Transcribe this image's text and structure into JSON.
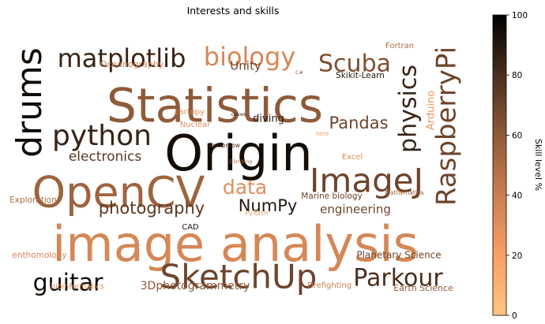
{
  "chart_data": {
    "type": "wordcloud",
    "title": "Interests and skills",
    "colorbar": {
      "label": "Skill level %",
      "min": 0,
      "max": 100,
      "ticks": [
        0,
        20,
        40,
        60,
        80,
        100
      ],
      "colormap": "copper_r",
      "stops": [
        "#ffc77f",
        "#f89f65",
        "#c97f51",
        "#8f5a39",
        "#4a2e1d",
        "#000000"
      ]
    },
    "words": [
      {
        "text": "image analysis",
        "skill": 35
      },
      {
        "text": "Statistics",
        "skill": 60
      },
      {
        "text": "Origin",
        "skill": 95
      },
      {
        "text": "OpenCV",
        "skill": 55
      },
      {
        "text": "ImageJ",
        "skill": 70
      },
      {
        "text": "SketchUp",
        "skill": 70
      },
      {
        "text": "drums",
        "skill": 95
      },
      {
        "text": "python",
        "skill": 85
      },
      {
        "text": "RaspberryPi",
        "skill": 70
      },
      {
        "text": "matplotlib",
        "skill": 85
      },
      {
        "text": "biology",
        "skill": 35
      },
      {
        "text": "Scuba",
        "skill": 65
      },
      {
        "text": "physics",
        "skill": 85
      },
      {
        "text": "Parkour",
        "skill": 80
      },
      {
        "text": "guitar",
        "skill": 95
      },
      {
        "text": "photography",
        "skill": 75
      },
      {
        "text": "Pandas",
        "skill": 70
      },
      {
        "text": "data",
        "skill": 30
      },
      {
        "text": "NumPy",
        "skill": 90
      },
      {
        "text": "electronics",
        "skill": 75
      },
      {
        "text": "engineering",
        "skill": 70
      },
      {
        "text": "Unity",
        "skill": 70
      },
      {
        "text": "3Dphotogrammetry",
        "skill": 60
      },
      {
        "text": "Planetary Science",
        "skill": 70
      },
      {
        "text": "Arduino",
        "skill": 25
      },
      {
        "text": "diving",
        "skill": 90
      },
      {
        "text": "Oceanography",
        "skill": 35
      },
      {
        "text": "Skikit-Learn",
        "skill": 90
      },
      {
        "text": "Marine biology",
        "skill": 70
      },
      {
        "text": "Earth Science",
        "skill": 60
      },
      {
        "text": "Exploration",
        "skill": 50
      },
      {
        "text": "Firefighting",
        "skill": 40
      },
      {
        "text": "enthomology",
        "skill": 35
      },
      {
        "text": "CAD",
        "skill": 90
      },
      {
        "text": "cartopy",
        "skill": 30
      },
      {
        "text": "Nuclear",
        "skill": 30
      },
      {
        "text": "Excel",
        "skill": 30
      },
      {
        "text": "Fortran",
        "skill": 50
      },
      {
        "text": "bioinformatics",
        "skill": 30
      },
      {
        "text": "Tensorflow",
        "skill": 80
      },
      {
        "text": "Climbing",
        "skill": 50
      },
      {
        "text": "caves",
        "skill": 85
      },
      {
        "text": "html",
        "skill": 20
      },
      {
        "text": "C#",
        "skill": 60
      },
      {
        "text": "Mathematica",
        "skill": 55
      },
      {
        "text": "PyTorch",
        "skill": 25
      }
    ]
  }
}
